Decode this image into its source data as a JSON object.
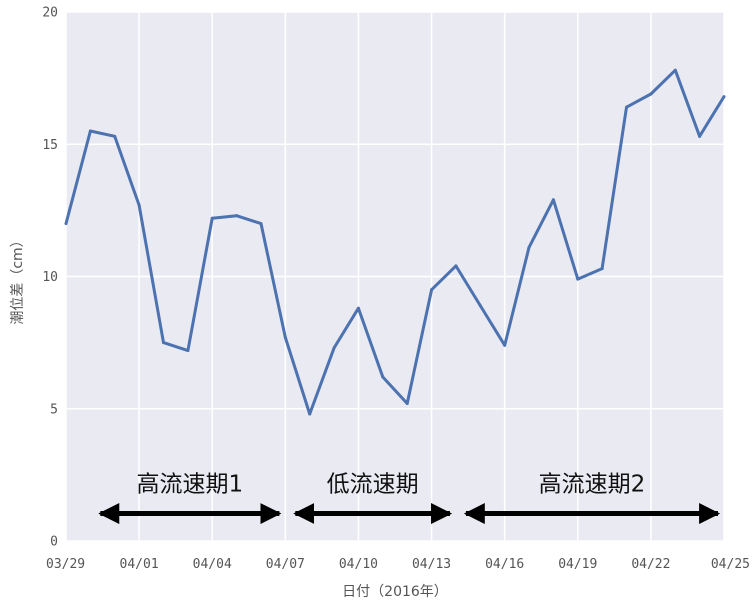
{
  "chart_data": {
    "type": "line",
    "title": "",
    "xlabel": "日付（2016年）",
    "ylabel": "潮位差（cm）",
    "ylim": [
      0,
      20
    ],
    "y_ticks": [
      0,
      5,
      10,
      15,
      20
    ],
    "xlim": [
      "2016-03-29",
      "2016-04-25"
    ],
    "x_ticks": [
      "2016-03-29",
      "2016-04-01",
      "2016-04-04",
      "2016-04-07",
      "2016-04-10",
      "2016-04-13",
      "2016-04-16",
      "2016-04-19",
      "2016-04-22",
      "2016-04-25"
    ],
    "x_tick_labels": [
      "03/29",
      "04/01",
      "04/04",
      "04/07",
      "04/10",
      "04/13",
      "04/16",
      "04/19",
      "04/22",
      "04/25"
    ],
    "grid": true,
    "colors": {
      "background": "#eaeaf2",
      "grid": "#ffffff",
      "line": "#4c72b0",
      "arrow": "#000000"
    },
    "series": [
      {
        "x": [
          "2016-03-29",
          "2016-03-30",
          "2016-03-31",
          "2016-04-01",
          "2016-04-02",
          "2016-04-03",
          "2016-04-04",
          "2016-04-05",
          "2016-04-06",
          "2016-04-07",
          "2016-04-08",
          "2016-04-09",
          "2016-04-10",
          "2016-04-11",
          "2016-04-12",
          "2016-04-13",
          "2016-04-14",
          "2016-04-15",
          "2016-04-16",
          "2016-04-17",
          "2016-04-18",
          "2016-04-19",
          "2016-04-20",
          "2016-04-21",
          "2016-04-22",
          "2016-04-23",
          "2016-04-24",
          "2016-04-25"
        ],
        "values": [
          12.0,
          15.5,
          15.3,
          12.7,
          7.5,
          7.2,
          12.2,
          12.3,
          12.0,
          7.7,
          4.8,
          7.3,
          8.8,
          6.2,
          5.2,
          9.5,
          10.4,
          8.9,
          7.4,
          11.1,
          12.9,
          9.9,
          10.3,
          16.4,
          16.9,
          17.8,
          15.3,
          16.8
        ]
      }
    ],
    "annotations": [
      {
        "text": "高流速期1",
        "x_start": "2016-03-30",
        "x_end": "2016-04-07",
        "y": 1.0
      },
      {
        "text": "低流速期",
        "x_start": "2016-04-07",
        "x_end": "2016-04-14",
        "y": 1.0
      },
      {
        "text": "高流速期2",
        "x_start": "2016-04-14",
        "x_end": "2016-04-25",
        "y": 1.0
      }
    ]
  }
}
